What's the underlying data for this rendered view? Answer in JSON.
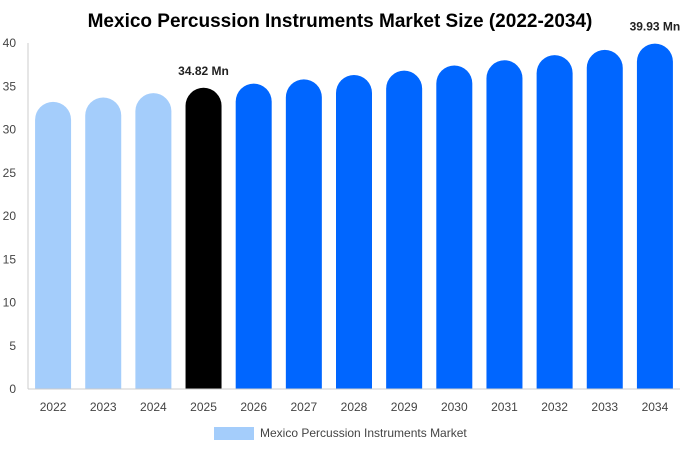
{
  "chart_data": {
    "type": "bar",
    "title": "Mexico Percussion Instruments Market Size (2022-2034)",
    "categories": [
      "2022",
      "2023",
      "2024",
      "2025",
      "2026",
      "2027",
      "2028",
      "2029",
      "2030",
      "2031",
      "2032",
      "2033",
      "2034"
    ],
    "series": [
      {
        "name": "Mexico Percussion Instruments Market",
        "values": [
          33.2,
          33.7,
          34.2,
          34.82,
          35.3,
          35.8,
          36.3,
          36.8,
          37.4,
          38.0,
          38.6,
          39.2,
          39.93
        ]
      }
    ],
    "ylim": [
      0,
      40
    ],
    "yticks": [
      0,
      5,
      10,
      15,
      20,
      25,
      30,
      35,
      40
    ],
    "xlabel": "",
    "ylabel": "",
    "grid": false,
    "legend_position": "bottom-center",
    "data_labels": [
      {
        "index": 3,
        "text": "34.82 Mn"
      },
      {
        "index": 12,
        "text": "39.93 Mn"
      }
    ],
    "colors": {
      "historical": "#a4cdfb",
      "current": "#000000",
      "forecast": "#0066ff",
      "legend": "#a4cdfb",
      "axis": "#cccccc"
    },
    "historical_count": 3,
    "current_index": 3
  }
}
